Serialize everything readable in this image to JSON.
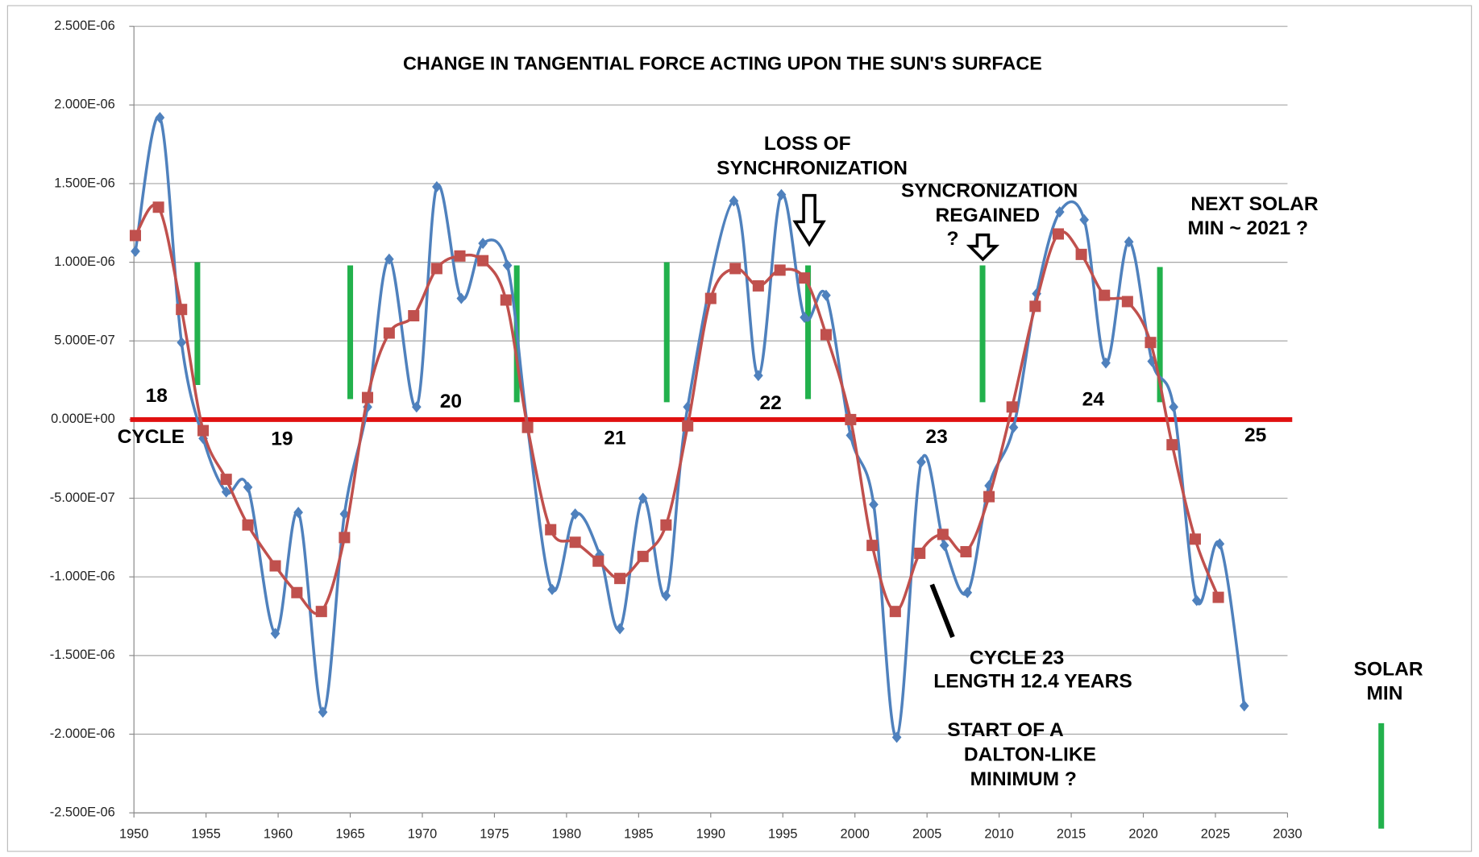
{
  "chart_data": {
    "type": "line",
    "title": "CHANGE IN TANGENTIAL FORCE ACTING UPON THE SUN'S SURFACE",
    "xlim": [
      1950,
      2030
    ],
    "xticks": [
      1950,
      1955,
      1960,
      1965,
      1970,
      1975,
      1980,
      1985,
      1990,
      1995,
      2000,
      2005,
      2010,
      2015,
      2020,
      2025,
      2030
    ],
    "ylim": [
      -2.5e-06,
      2.5e-06
    ],
    "yticks": [
      {
        "value": 2.5e-06,
        "label": "2.500E-06"
      },
      {
        "value": 2e-06,
        "label": "2.000E-06"
      },
      {
        "value": 1.5e-06,
        "label": "1.500E-06"
      },
      {
        "value": 1e-06,
        "label": "1.000E-06"
      },
      {
        "value": 5e-07,
        "label": "5.000E-07"
      },
      {
        "value": 0,
        "label": "0.000E+00"
      },
      {
        "value": -5e-07,
        "label": "-5.000E-07"
      },
      {
        "value": -1e-06,
        "label": "-1.000E-06"
      },
      {
        "value": -1.5e-06,
        "label": "-1.500E-06"
      },
      {
        "value": -2e-06,
        "label": "-2.000E-06"
      },
      {
        "value": -2.5e-06,
        "label": "-2.500E-06"
      }
    ],
    "grid": true,
    "series": [
      {
        "color": "#4f81bd",
        "marker": "diamond",
        "x": [
          1950.1,
          1951.8,
          1953.3,
          1954.8,
          1956.4,
          1957.9,
          1959.8,
          1961.4,
          1963.1,
          1964.6,
          1966.2,
          1967.7,
          1969.6,
          1971.0,
          1972.7,
          1974.2,
          1975.9,
          1977.3,
          1979.0,
          1980.6,
          1982.3,
          1983.7,
          1985.3,
          1986.9,
          1988.4,
          1991.6,
          1993.3,
          1994.9,
          1996.5,
          1998.0,
          1999.7,
          2001.3,
          2002.9,
          2004.6,
          2006.2,
          2007.8,
          2009.3,
          2011.0,
          2012.6,
          2014.2,
          2015.9,
          2017.4,
          2019.0,
          2020.6,
          2022.1,
          2023.7,
          2025.3,
          2027.0
        ],
        "values": [
          1.07e-06,
          1.92e-06,
          4.9e-07,
          -1.2e-07,
          -4.6e-07,
          -4.3e-07,
          -1.36e-06,
          -5.9e-07,
          -1.86e-06,
          -6e-07,
          8e-08,
          1.02e-06,
          8e-08,
          1.48e-06,
          7.7e-07,
          1.12e-06,
          9.8e-07,
          -5e-08,
          -1.08e-06,
          -6e-07,
          -8.6e-07,
          -1.33e-06,
          -5e-07,
          -1.12e-06,
          8e-08,
          1.39e-06,
          2.8e-07,
          1.43e-06,
          6.5e-07,
          7.9e-07,
          -1e-07,
          -5.4e-07,
          -2.02e-06,
          -2.7e-07,
          -8e-07,
          -1.1e-06,
          -4.2e-07,
          -5e-08,
          8e-07,
          1.32e-06,
          1.27e-06,
          3.6e-07,
          1.13e-06,
          3.7e-07,
          8e-08,
          -1.15e-06,
          -7.9e-07,
          -1.82e-06
        ]
      },
      {
        "color": "#c0504d",
        "marker": "square",
        "x": [
          1950.1,
          1951.7,
          1953.3,
          1954.8,
          1956.4,
          1957.9,
          1959.8,
          1961.3,
          1963.0,
          1964.6,
          1966.2,
          1967.7,
          1969.4,
          1971.0,
          1972.6,
          1974.2,
          1975.8,
          1977.3,
          1978.9,
          1980.6,
          1982.2,
          1983.7,
          1985.3,
          1986.9,
          1988.4,
          1990.0,
          1991.7,
          1993.3,
          1994.8,
          1996.5,
          1998.0,
          1999.7,
          2001.2,
          2002.8,
          2004.5,
          2006.1,
          2007.7,
          2009.3,
          2010.9,
          2012.5,
          2014.1,
          2015.7,
          2017.3,
          2018.9,
          2020.5,
          2022.0,
          2023.6,
          2025.2
        ],
        "values": [
          1.17e-06,
          1.35e-06,
          7e-07,
          -7e-08,
          -3.8e-07,
          -6.7e-07,
          -9.3e-07,
          -1.1e-06,
          -1.22e-06,
          -7.5e-07,
          1.4e-07,
          5.5e-07,
          6.6e-07,
          9.6e-07,
          1.04e-06,
          1.01e-06,
          7.6e-07,
          -5e-08,
          -7e-07,
          -7.8e-07,
          -9e-07,
          -1.01e-06,
          -8.7e-07,
          -6.7e-07,
          -4e-08,
          7.7e-07,
          9.6e-07,
          8.5e-07,
          9.5e-07,
          9e-07,
          5.4e-07,
          0,
          -8e-07,
          -1.22e-06,
          -8.5e-07,
          -7.3e-07,
          -8.4e-07,
          -4.9e-07,
          8e-08,
          7.2e-07,
          1.18e-06,
          1.05e-06,
          7.9e-07,
          7.5e-07,
          4.9e-07,
          -1.6e-07,
          -7.6e-07,
          -1.13e-06
        ]
      }
    ],
    "solar_min_color": "#22b14c",
    "solar_min_markers": [
      {
        "x": 1954.4,
        "y": [
          1e-06,
          2.2e-07
        ]
      },
      {
        "x": 1965.0,
        "y": [
          9.8e-07,
          1.3e-07
        ]
      },
      {
        "x": 1976.55,
        "y": [
          9.8e-07,
          1.1e-07
        ]
      },
      {
        "x": 1986.95,
        "y": [
          1e-06,
          1.1e-07
        ]
      },
      {
        "x": 1996.75,
        "y": [
          9.8e-07,
          1.3e-07
        ]
      },
      {
        "x": 2008.85,
        "y": [
          9.8e-07,
          1.1e-07
        ]
      },
      {
        "x": 2021.15,
        "y": [
          9.7e-07,
          1.1e-07
        ]
      },
      {
        "x": 2036.5,
        "y": [
          -1.93e-06,
          -2.6e-06
        ]
      }
    ],
    "annotations": [
      "LOSS OF",
      "SYNCHRONIZATION",
      "SYNCRONIZATION",
      "REGAINED",
      "?",
      "NEXT SOLAR",
      "MIN ~ 2021 ?",
      "18",
      "CYCLE",
      "19",
      "20",
      "21",
      "22",
      "23",
      "24",
      "25",
      "CYCLE 23",
      "LENGTH 12.4 YEARS",
      "START OF A",
      "DALTON-LIKE",
      "MINIMUM ?",
      "SOLAR",
      "MIN"
    ]
  }
}
